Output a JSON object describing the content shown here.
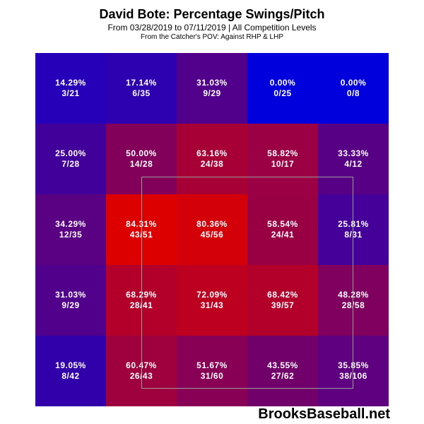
{
  "title": "David Bote: Percentage Swings/Pitch",
  "subtitle": "From 03/28/2019 to 07/11/2019 | All Competition Levels",
  "subtitle2": "From the Catcher's POV:  Against RHP & LHP",
  "watermark": "BrooksBaseball.net",
  "colors": {
    "low": "#0000dd",
    "high": "#dd0000",
    "strike_zone_border": "#9a9a9a"
  },
  "chart_data": {
    "type": "heatmap",
    "title": "David Bote: Percentage Swings/Pitch",
    "rows": 5,
    "cols": 5,
    "value_range": [
      0,
      84.31
    ],
    "cells": [
      [
        {
          "pct": "14.29%",
          "count": "3/21",
          "value": 14.29
        },
        {
          "pct": "17.14%",
          "count": "6/35",
          "value": 17.14
        },
        {
          "pct": "31.03%",
          "count": "9/29",
          "value": 31.03
        },
        {
          "pct": "0.00%",
          "count": "0/25",
          "value": 0
        },
        {
          "pct": "0.00%",
          "count": "0/8",
          "value": 0
        }
      ],
      [
        {
          "pct": "25.00%",
          "count": "7/28",
          "value": 25.0
        },
        {
          "pct": "50.00%",
          "count": "14/28",
          "value": 50.0
        },
        {
          "pct": "63.16%",
          "count": "24/38",
          "value": 63.16
        },
        {
          "pct": "58.82%",
          "count": "10/17",
          "value": 58.82
        },
        {
          "pct": "33.33%",
          "count": "4/12",
          "value": 33.33
        }
      ],
      [
        {
          "pct": "34.29%",
          "count": "12/35",
          "value": 34.29
        },
        {
          "pct": "84.31%",
          "count": "43/51",
          "value": 84.31
        },
        {
          "pct": "80.36%",
          "count": "45/56",
          "value": 80.36
        },
        {
          "pct": "58.54%",
          "count": "24/41",
          "value": 58.54
        },
        {
          "pct": "25.81%",
          "count": "8/31",
          "value": 25.81
        }
      ],
      [
        {
          "pct": "31.03%",
          "count": "9/29",
          "value": 31.03
        },
        {
          "pct": "68.29%",
          "count": "28/41",
          "value": 68.29
        },
        {
          "pct": "72.09%",
          "count": "31/43",
          "value": 72.09
        },
        {
          "pct": "68.42%",
          "count": "39/57",
          "value": 68.42
        },
        {
          "pct": "48.28%",
          "count": "28/58",
          "value": 48.28
        }
      ],
      [
        {
          "pct": "19.05%",
          "count": "8/42",
          "value": 19.05
        },
        {
          "pct": "60.47%",
          "count": "26/43",
          "value": 60.47
        },
        {
          "pct": "51.67%",
          "count": "31/60",
          "value": 51.67
        },
        {
          "pct": "43.55%",
          "count": "27/62",
          "value": 43.55
        },
        {
          "pct": "35.85%",
          "count": "38/106",
          "value": 35.85
        }
      ]
    ]
  }
}
